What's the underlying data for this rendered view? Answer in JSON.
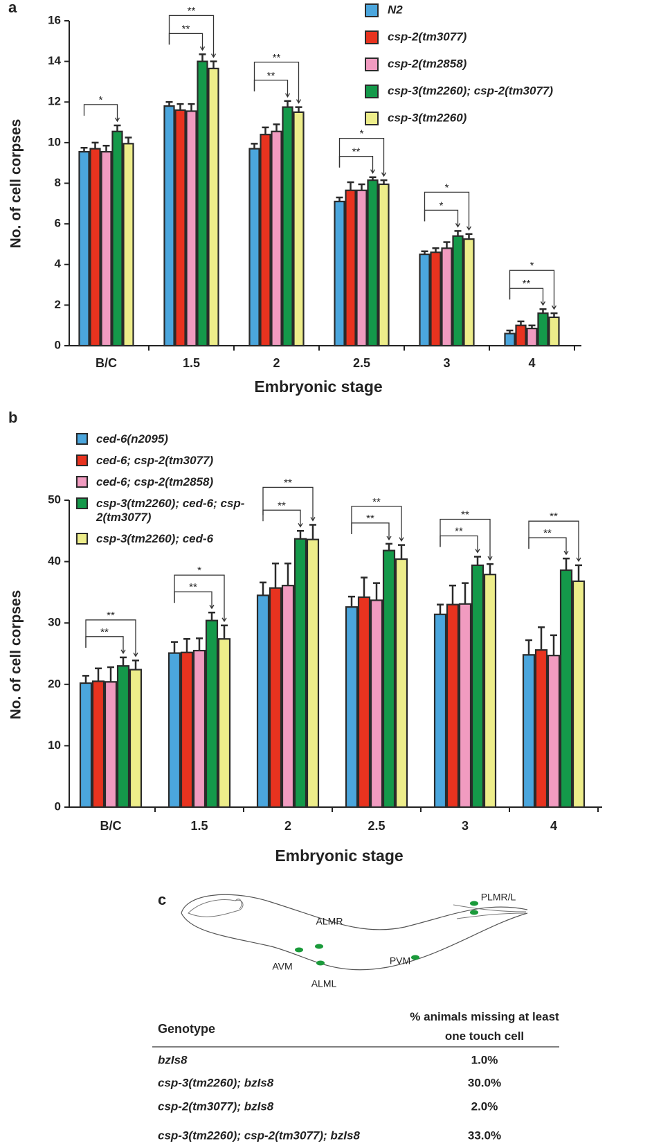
{
  "chart_data": [
    {
      "type": "bar",
      "panel": "a",
      "x_label": "Embryonic stage",
      "y_label": "No. of cell corpses",
      "categories": [
        "B/C",
        "1.5",
        "2",
        "2.5",
        "3",
        "4"
      ],
      "ylim": [
        0,
        16
      ],
      "yticks": [
        0,
        2,
        4,
        6,
        8,
        10,
        12,
        14,
        16
      ],
      "series": [
        {
          "name": "N2",
          "color": "#4ba6dd",
          "values": [
            9.55,
            11.8,
            9.7,
            7.1,
            4.5,
            0.6
          ],
          "errors": [
            0.2,
            0.2,
            0.25,
            0.2,
            0.15,
            0.15
          ]
        },
        {
          "name": "csp-2(tm3077)",
          "color": "#e8331f",
          "values": [
            9.7,
            11.6,
            10.4,
            7.65,
            4.6,
            1.0
          ],
          "errors": [
            0.3,
            0.3,
            0.35,
            0.4,
            0.2,
            0.2
          ]
        },
        {
          "name": "csp-2(tm2858)",
          "color": "#f19bc0",
          "values": [
            9.55,
            11.55,
            10.55,
            7.65,
            4.8,
            0.85
          ],
          "errors": [
            0.3,
            0.35,
            0.35,
            0.3,
            0.3,
            0.15
          ]
        },
        {
          "name": "csp-3(tm2260); csp-2(tm3077)",
          "color": "#14994a",
          "values": [
            10.55,
            14.0,
            11.75,
            8.15,
            5.4,
            1.6
          ],
          "errors": [
            0.3,
            0.35,
            0.3,
            0.15,
            0.25,
            0.2
          ]
        },
        {
          "name": "csp-3(tm2260)",
          "color": "#eded8a",
          "values": [
            9.95,
            13.65,
            11.5,
            7.95,
            5.25,
            1.4
          ],
          "errors": [
            0.3,
            0.35,
            0.25,
            0.2,
            0.25,
            0.2
          ]
        }
      ],
      "annotations": [
        {
          "category": "B/C",
          "from": "N2",
          "to": "csp-3(tm2260); csp-2(tm3077)",
          "label": "*"
        },
        {
          "category": "1.5",
          "from": "N2",
          "to": "csp-3(tm2260); csp-2(tm3077)",
          "label": "**"
        },
        {
          "category": "1.5",
          "from": "N2",
          "to": "csp-3(tm2260)",
          "label": "**"
        },
        {
          "category": "2",
          "from": "N2",
          "to": "csp-3(tm2260); csp-2(tm3077)",
          "label": "**"
        },
        {
          "category": "2",
          "from": "N2",
          "to": "csp-3(tm2260)",
          "label": "**"
        },
        {
          "category": "2.5",
          "from": "N2",
          "to": "csp-3(tm2260); csp-2(tm3077)",
          "label": "**"
        },
        {
          "category": "2.5",
          "from": "N2",
          "to": "csp-3(tm2260)",
          "label": "*"
        },
        {
          "category": "3",
          "from": "N2",
          "to": "csp-3(tm2260); csp-2(tm3077)",
          "label": "*"
        },
        {
          "category": "3",
          "from": "N2",
          "to": "csp-3(tm2260)",
          "label": "*"
        },
        {
          "category": "4",
          "from": "N2",
          "to": "csp-3(tm2260); csp-2(tm3077)",
          "label": "**"
        },
        {
          "category": "4",
          "from": "N2",
          "to": "csp-3(tm2260)",
          "label": "*"
        }
      ]
    },
    {
      "type": "bar",
      "panel": "b",
      "x_label": "Embryonic stage",
      "y_label": "No. of cell corpses",
      "categories": [
        "B/C",
        "1.5",
        "2",
        "2.5",
        "3",
        "4"
      ],
      "ylim": [
        0,
        50
      ],
      "yticks": [
        0,
        10,
        20,
        30,
        40,
        50
      ],
      "series": [
        {
          "name": "ced-6(n2095)",
          "color": "#4ba6dd",
          "values": [
            20.2,
            25.1,
            34.5,
            32.6,
            31.4,
            24.8
          ],
          "errors": [
            1.2,
            1.8,
            2.1,
            1.7,
            1.6,
            2.4
          ]
        },
        {
          "name": "ced-6; csp-2(tm3077)",
          "color": "#e8331f",
          "values": [
            20.5,
            25.2,
            35.7,
            34.2,
            33.0,
            25.6
          ],
          "errors": [
            2.1,
            2.2,
            4.0,
            3.2,
            3.1,
            3.7
          ]
        },
        {
          "name": "ced-6; csp-2(tm2858)",
          "color": "#f19bc0",
          "values": [
            20.4,
            25.5,
            36.1,
            33.7,
            33.1,
            24.7
          ],
          "errors": [
            2.4,
            2.0,
            3.6,
            2.8,
            3.4,
            3.3
          ]
        },
        {
          "name": "csp-3(tm2260); ced-6; csp-2(tm3077)",
          "color": "#14994a",
          "values": [
            23.0,
            30.4,
            43.7,
            41.8,
            39.4,
            38.6
          ],
          "errors": [
            1.4,
            1.3,
            1.3,
            1.1,
            1.4,
            1.9
          ]
        },
        {
          "name": "csp-3(tm2260); ced-6",
          "color": "#eded8a",
          "values": [
            22.4,
            27.4,
            43.6,
            40.4,
            37.9,
            36.8
          ],
          "errors": [
            1.5,
            2.2,
            2.4,
            2.3,
            1.7,
            2.6
          ]
        }
      ],
      "annotations": [
        {
          "category": "B/C",
          "from": "ced-6(n2095)",
          "to": "csp-3(tm2260); ced-6; csp-2(tm3077)",
          "label": "**"
        },
        {
          "category": "B/C",
          "from": "ced-6(n2095)",
          "to": "csp-3(tm2260); ced-6",
          "label": "**"
        },
        {
          "category": "1.5",
          "from": "ced-6(n2095)",
          "to": "csp-3(tm2260); ced-6; csp-2(tm3077)",
          "label": "**"
        },
        {
          "category": "1.5",
          "from": "ced-6(n2095)",
          "to": "csp-3(tm2260); ced-6",
          "label": "*"
        },
        {
          "category": "2",
          "from": "ced-6(n2095)",
          "to": "csp-3(tm2260); ced-6; csp-2(tm3077)",
          "label": "**"
        },
        {
          "category": "2",
          "from": "ced-6(n2095)",
          "to": "csp-3(tm2260); ced-6",
          "label": "**"
        },
        {
          "category": "2.5",
          "from": "ced-6(n2095)",
          "to": "csp-3(tm2260); ced-6; csp-2(tm3077)",
          "label": "**"
        },
        {
          "category": "2.5",
          "from": "ced-6(n2095)",
          "to": "csp-3(tm2260); ced-6",
          "label": "**"
        },
        {
          "category": "3",
          "from": "ced-6(n2095)",
          "to": "csp-3(tm2260); ced-6; csp-2(tm3077)",
          "label": "**"
        },
        {
          "category": "3",
          "from": "ced-6(n2095)",
          "to": "csp-3(tm2260); ced-6",
          "label": "**"
        },
        {
          "category": "4",
          "from": "ced-6(n2095)",
          "to": "csp-3(tm2260); ced-6; csp-2(tm3077)",
          "label": "**"
        },
        {
          "category": "4",
          "from": "ced-6(n2095)",
          "to": "csp-3(tm2260); ced-6",
          "label": "**"
        }
      ]
    }
  ],
  "panel_c": {
    "panel": "c",
    "neurons": [
      "ALMR",
      "AVM",
      "ALML",
      "PVM",
      "PLMR/L"
    ],
    "table": {
      "header": [
        "Genotype",
        "% animals missing at least one touch cell"
      ],
      "rows": [
        [
          "bzIs8",
          "1.0%"
        ],
        [
          "csp-3(tm2260); bzIs8",
          "30.0%"
        ],
        [
          "csp-2(tm3077); bzIs8",
          "2.0%"
        ],
        [
          "csp-3(tm2260); csp-2(tm3077); bzIs8",
          "33.0%"
        ]
      ]
    }
  }
}
